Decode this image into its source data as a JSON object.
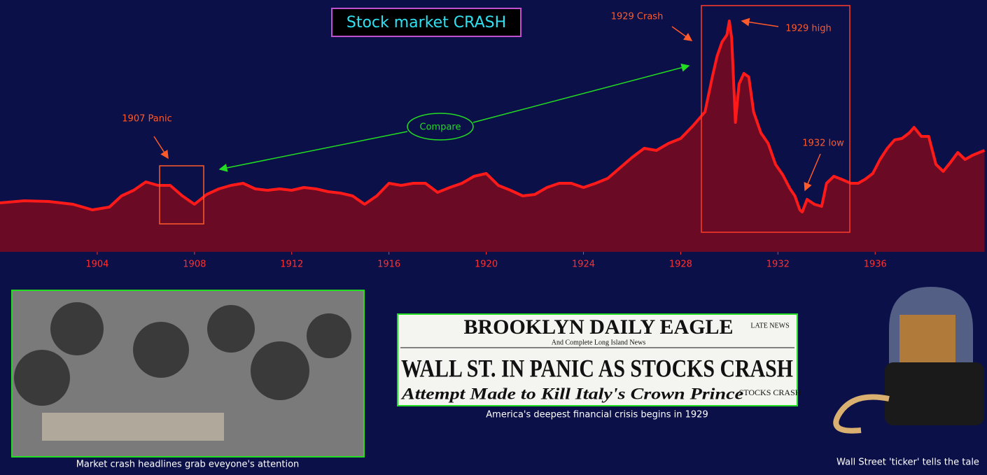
{
  "chart_data": {
    "type": "area",
    "title": "Stock market CRASH",
    "x": [
      1900,
      1901,
      1902,
      1903,
      1903.8,
      1904.5,
      1905,
      1905.5,
      1906,
      1906.5,
      1907,
      1907.5,
      1908,
      1908.5,
      1909,
      1909.5,
      1910,
      1910.5,
      1911,
      1911.5,
      1912,
      1912.5,
      1913,
      1913.5,
      1914,
      1914.5,
      1915,
      1915.5,
      1916,
      1916.5,
      1917,
      1917.5,
      1918,
      1918.5,
      1919,
      1919.5,
      1920,
      1920.5,
      1921,
      1921.5,
      1922,
      1922.5,
      1923,
      1923.5,
      1924,
      1924.5,
      1925,
      1925.5,
      1926,
      1926.5,
      1927,
      1927.5,
      1928,
      1928.5,
      1929,
      1929.3,
      1929.5,
      1929.7,
      1929.9,
      1930,
      1930.1,
      1930.25,
      1930.4,
      1930.6,
      1930.8,
      1931,
      1931.3,
      1931.6,
      1931.9,
      1932.2,
      1932.5,
      1932.7,
      1932.9,
      1933,
      1933.2,
      1933.5,
      1933.8,
      1934,
      1934.3,
      1934.6,
      1935,
      1935.3,
      1935.6,
      1935.9,
      1936.2,
      1936.5,
      1936.8,
      1937.1,
      1937.4,
      1937.6,
      1937.9,
      1938.2,
      1938.5,
      1938.8,
      1939.1,
      1939.4,
      1939.7,
      1940,
      1940.5
    ],
    "values": [
      70,
      73,
      72,
      68,
      60,
      64,
      80,
      88,
      100,
      95,
      95,
      80,
      68,
      82,
      90,
      95,
      98,
      90,
      88,
      90,
      88,
      92,
      90,
      86,
      84,
      80,
      68,
      80,
      98,
      95,
      98,
      98,
      85,
      92,
      98,
      108,
      112,
      95,
      88,
      80,
      82,
      92,
      98,
      98,
      92,
      98,
      105,
      120,
      135,
      148,
      145,
      155,
      162,
      180,
      200,
      250,
      280,
      300,
      310,
      330,
      305,
      185,
      240,
      255,
      250,
      200,
      170,
      155,
      125,
      110,
      90,
      80,
      60,
      57,
      75,
      68,
      65,
      98,
      108,
      104,
      98,
      98,
      104,
      112,
      132,
      148,
      160,
      162,
      170,
      178,
      165,
      165,
      125,
      115,
      128,
      142,
      132,
      138,
      145
    ],
    "color": "#ff1a1a",
    "fill": "#6b0a24",
    "xlim": [
      1900,
      1940.6
    ],
    "ylim": [
      0,
      360
    ],
    "xticks": [
      1904,
      1908,
      1912,
      1916,
      1920,
      1924,
      1928,
      1932,
      1936
    ],
    "annotations": {
      "panic": "1907 Panic",
      "compare": "Compare",
      "crash": "1929 Crash",
      "high": "1929 high",
      "low": "1932 low"
    }
  },
  "photo": {
    "caption": "Market crash headlines grab eveyone's attention"
  },
  "newspaper": {
    "masthead": "BROOKLYN DAILY EAGLE",
    "sub": "And Complete Long Island News",
    "late": "LATE NEWS",
    "headline": "WALL ST. IN PANIC AS STOCKS CRASH",
    "second": "Attempt Made to Kill Italy's Crown Prince",
    "side": "STOCKS CRASH",
    "caption": "America's deepest financial crisis begins in 1929"
  },
  "ticker": {
    "caption": "Wall Street 'ticker' tells the tale"
  }
}
